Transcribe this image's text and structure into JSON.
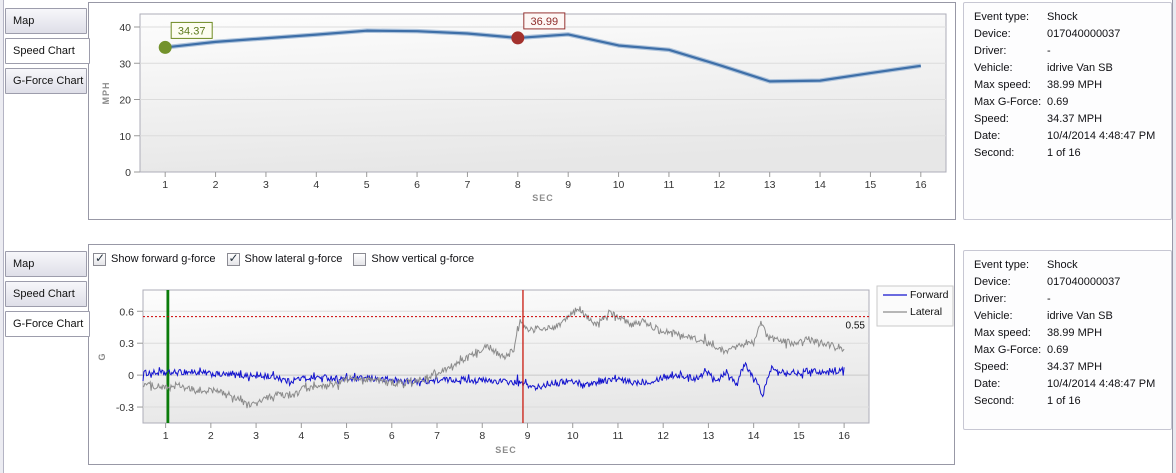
{
  "tabs": {
    "items": [
      "Map",
      "Speed Chart",
      "G-Force Chart"
    ],
    "top_selected": "Speed Chart",
    "bottom_selected": "G-Force Chart"
  },
  "info_panel": {
    "rows": [
      {
        "label": "Event type:",
        "value": "Shock"
      },
      {
        "label": "Device:",
        "value": "017040000037"
      },
      {
        "label": "Driver:",
        "value": "-"
      },
      {
        "label": "Vehicle:",
        "value": "idrive Van SB"
      },
      {
        "label": "Max speed:",
        "value": "38.99 MPH"
      },
      {
        "label": "Max G-Force:",
        "value": "0.69"
      },
      {
        "label": "Speed:",
        "value": "34.37 MPH"
      },
      {
        "label": "Date:",
        "value": "10/4/2014 4:48:47 PM"
      },
      {
        "label": "Second:",
        "value": "1 of 16"
      }
    ]
  },
  "gforce_controls": {
    "checkboxes": [
      {
        "label": "Show forward g-force",
        "checked": true
      },
      {
        "label": "Show lateral g-force",
        "checked": true
      },
      {
        "label": "Show vertical g-force",
        "checked": false
      }
    ]
  },
  "chart_data": [
    {
      "type": "line",
      "title": "Speed Chart",
      "xlabel": "SEC",
      "ylabel": "MPH",
      "xlim": [
        0.5,
        16.5
      ],
      "ylim": [
        0,
        43.5
      ],
      "xticks": [
        1,
        2,
        3,
        4,
        5,
        6,
        7,
        8,
        9,
        10,
        11,
        12,
        13,
        14,
        15,
        16
      ],
      "yticks": [
        0,
        10,
        20,
        30,
        40
      ],
      "grid": true,
      "x": [
        1,
        2,
        3,
        4,
        5,
        6,
        7,
        8,
        9,
        10,
        11,
        12,
        13,
        14,
        15,
        16
      ],
      "series": [
        {
          "name": "Speed",
          "color": "#3E6FA8",
          "values": [
            34.37,
            35.9,
            36.9,
            37.9,
            38.99,
            38.85,
            38.2,
            36.99,
            37.95,
            34.9,
            33.7,
            29.5,
            25.0,
            25.2,
            27.3,
            29.3
          ]
        }
      ],
      "markers": [
        {
          "x": 1,
          "y": 34.37,
          "label": "34.37",
          "dot_color": "#73922C",
          "border_color": "#6D8A21",
          "text_color": "#5D7A1D",
          "box_fill": "#FDFDF0"
        },
        {
          "x": 8,
          "y": 36.99,
          "label": "36.99",
          "dot_color": "#A3312D",
          "border_color": "#953432",
          "text_color": "#8F2C2A",
          "box_fill": "#FDF7F5"
        }
      ]
    },
    {
      "type": "line",
      "title": "G-Force Chart",
      "xlabel": "SEC",
      "ylabel": "G",
      "xlim": [
        0.5,
        16.55
      ],
      "ylim": [
        -0.45,
        0.8
      ],
      "xticks": [
        1,
        2,
        3,
        4,
        5,
        6,
        7,
        8,
        9,
        10,
        11,
        12,
        13,
        14,
        15,
        16
      ],
      "yticks": [
        -0.3,
        0,
        0.3,
        0.6
      ],
      "grid": true,
      "legend": {
        "position": "top-right",
        "entries": [
          "Forward",
          "Lateral"
        ]
      },
      "threshold_line": {
        "y": 0.55,
        "label": "0.55",
        "color": "#CC0000",
        "style": "dotted"
      },
      "event_lines": [
        {
          "name": "selected-second-marker",
          "x": 1.05,
          "color": "#0B7C0B",
          "width": 2.8
        },
        {
          "name": "shock-event-marker",
          "x": 8.9,
          "color": "#CC2A21",
          "width": 1.4
        }
      ],
      "series": [
        {
          "name": "Forward",
          "color": "#1414CE",
          "noise_amplitude": 0.028,
          "keypoints": [
            [
              0.5,
              0.02
            ],
            [
              1,
              0.02
            ],
            [
              1.5,
              0.03
            ],
            [
              2,
              0.01
            ],
            [
              2.5,
              0
            ],
            [
              3,
              -0.01
            ],
            [
              3.5,
              -0.02
            ],
            [
              3.7,
              -0.06
            ],
            [
              4,
              -0.03
            ],
            [
              4.5,
              -0.02
            ],
            [
              5,
              -0.04
            ],
            [
              5.5,
              -0.03
            ],
            [
              6,
              -0.05
            ],
            [
              6.5,
              -0.06
            ],
            [
              7,
              -0.05
            ],
            [
              7.5,
              -0.04
            ],
            [
              8,
              -0.05
            ],
            [
              8.5,
              -0.06
            ],
            [
              9,
              -0.09
            ],
            [
              9.2,
              -0.13
            ],
            [
              9.5,
              -0.07
            ],
            [
              10,
              -0.06
            ],
            [
              10.3,
              -0.09
            ],
            [
              10.7,
              -0.05
            ],
            [
              11,
              -0.04
            ],
            [
              11.3,
              -0.07
            ],
            [
              11.7,
              -0.06
            ],
            [
              12,
              -0.02
            ],
            [
              12.3,
              0
            ],
            [
              12.7,
              -0.03
            ],
            [
              13,
              0.03
            ],
            [
              13.2,
              -0.05
            ],
            [
              13.4,
              0.04
            ],
            [
              13.6,
              -0.08
            ],
            [
              13.8,
              0.09
            ],
            [
              14,
              -0.02
            ],
            [
              14.2,
              -0.18
            ],
            [
              14.4,
              0.07
            ],
            [
              14.7,
              0.03
            ],
            [
              15,
              0.02
            ],
            [
              15.3,
              0.05
            ],
            [
              15.6,
              0.02
            ],
            [
              16,
              0.05
            ]
          ]
        },
        {
          "name": "Lateral",
          "color": "#8C8C8C",
          "noise_amplitude": 0.03,
          "keypoints": [
            [
              0.5,
              -0.08
            ],
            [
              1,
              -0.12
            ],
            [
              1.3,
              -0.1
            ],
            [
              1.7,
              -0.16
            ],
            [
              2,
              -0.14
            ],
            [
              2.3,
              -0.17
            ],
            [
              2.6,
              -0.22
            ],
            [
              2.8,
              -0.28
            ],
            [
              3,
              -0.27
            ],
            [
              3.2,
              -0.22
            ],
            [
              3.5,
              -0.18
            ],
            [
              3.8,
              -0.2
            ],
            [
              4,
              -0.13
            ],
            [
              4.3,
              -0.12
            ],
            [
              4.7,
              -0.1
            ],
            [
              5,
              -0.04
            ],
            [
              5.3,
              -0.03
            ],
            [
              5.7,
              -0.05
            ],
            [
              6,
              -0.07
            ],
            [
              6.3,
              -0.07
            ],
            [
              6.7,
              -0.04
            ],
            [
              7,
              0.02
            ],
            [
              7.3,
              0.08
            ],
            [
              7.6,
              0.14
            ],
            [
              7.9,
              0.22
            ],
            [
              8.1,
              0.28
            ],
            [
              8.3,
              0.22
            ],
            [
              8.5,
              0.16
            ],
            [
              8.7,
              0.25
            ],
            [
              8.85,
              0.52
            ],
            [
              9,
              0.42
            ],
            [
              9.3,
              0.45
            ],
            [
              9.6,
              0.43
            ],
            [
              9.9,
              0.55
            ],
            [
              10.1,
              0.62
            ],
            [
              10.3,
              0.56
            ],
            [
              10.5,
              0.47
            ],
            [
              10.8,
              0.58
            ],
            [
              11,
              0.55
            ],
            [
              11.3,
              0.48
            ],
            [
              11.6,
              0.5
            ],
            [
              11.9,
              0.42
            ],
            [
              12.2,
              0.41
            ],
            [
              12.5,
              0.36
            ],
            [
              12.8,
              0.33
            ],
            [
              13.1,
              0.28
            ],
            [
              13.4,
              0.22
            ],
            [
              13.7,
              0.28
            ],
            [
              14,
              0.3
            ],
            [
              14.15,
              0.5
            ],
            [
              14.3,
              0.36
            ],
            [
              14.6,
              0.32
            ],
            [
              14.9,
              0.3
            ],
            [
              15.2,
              0.34
            ],
            [
              15.5,
              0.3
            ],
            [
              15.8,
              0.28
            ],
            [
              16,
              0.24
            ]
          ]
        }
      ]
    }
  ]
}
